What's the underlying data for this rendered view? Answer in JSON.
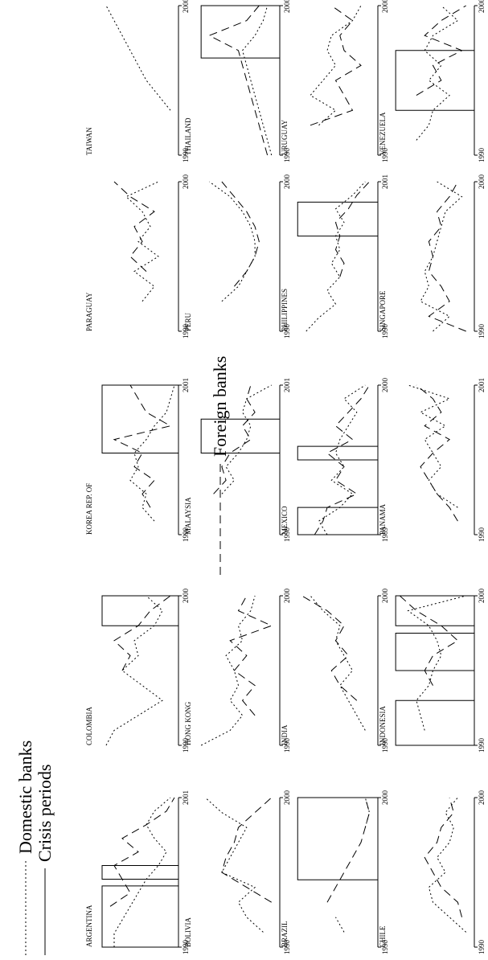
{
  "legend": {
    "domestic": "Domestic banks",
    "crisis": "Crisis periods",
    "foreign": "Foreign banks"
  },
  "chart_data": [
    {
      "type": "line",
      "title": "ARGENTINA",
      "x_start": "1990",
      "x_end": "2001",
      "x": [
        1990,
        1991,
        1992,
        1993,
        1994,
        1995,
        1996,
        1997,
        1998,
        1999,
        2000,
        2001
      ],
      "series": [
        {
          "name": "Domestic banks",
          "values": [
            0.2,
            0.2,
            0.3,
            0.4,
            0.5,
            0.6,
            0.75,
            0.85,
            0.7,
            0.6,
            0.7,
            0.9
          ]
        },
        {
          "name": "Foreign banks",
          "values": [
            null,
            null,
            null,
            0.15,
            0.4,
            0.3,
            0.2,
            0.5,
            0.3,
            0.6,
            0.85,
            0.95
          ]
        }
      ],
      "crisis_periods": [
        [
          1990,
          1994.5
        ],
        [
          1995,
          1996
        ]
      ]
    },
    {
      "type": "line",
      "title": "BOLIVIA",
      "x_start": "1990",
      "x_end": "2000",
      "x": [
        1990,
        1991,
        1992,
        1993,
        1994,
        1995,
        1996,
        1997,
        1998,
        1999,
        2000
      ],
      "series": [
        {
          "name": "Domestic banks",
          "values": [
            null,
            0.8,
            0.6,
            0.5,
            0.7,
            0.3,
            0.4,
            0.5,
            0.6,
            0.3,
            0.1
          ]
        },
        {
          "name": "Foreign banks",
          "values": [
            null,
            null,
            null,
            0.9,
            0.6,
            0.3,
            0.35,
            0.45,
            0.5,
            0.7,
            0.9
          ]
        }
      ],
      "crisis_periods": []
    },
    {
      "type": "line",
      "title": "BRAZIL",
      "x_start": "1990",
      "x_end": "2000",
      "x": [
        1990,
        1991,
        1992,
        1993,
        1994,
        1995,
        1996,
        1997,
        1998,
        1999,
        2000
      ],
      "series": [
        {
          "name": "Domestic banks",
          "values": [
            null,
            0.6,
            0.5,
            null,
            null,
            null,
            null,
            null,
            0.85,
            0.9,
            0.85
          ]
        },
        {
          "name": "Foreign banks",
          "values": [
            null,
            null,
            null,
            0.4,
            0.5,
            0.6,
            0.7,
            0.8,
            0.85,
            0.9,
            0.85
          ]
        }
      ],
      "crisis_periods": [
        [
          1994.5,
          2000
        ]
      ]
    },
    {
      "type": "line",
      "title": "CHILE",
      "x_start": "1990",
      "x_end": "2000",
      "x": [
        1990,
        1991,
        1992,
        1993,
        1994,
        1995,
        1996,
        1997,
        1998,
        1999,
        2000
      ],
      "series": [
        {
          "name": "Domestic banks",
          "values": [
            null,
            0.9,
            0.7,
            0.5,
            0.45,
            0.65,
            0.55,
            0.7,
            0.75,
            0.65,
            0.8
          ]
        },
        {
          "name": "Foreign banks",
          "values": [
            null,
            null,
            0.85,
            0.8,
            0.6,
            0.5,
            0.4,
            0.55,
            0.6,
            0.75,
            0.7
          ]
        }
      ],
      "crisis_periods": []
    },
    {
      "type": "line",
      "title": "COLOMBIA",
      "x_start": "1990",
      "x_end": "2000",
      "x": [
        1990,
        1991,
        1992,
        1993,
        1994,
        1995,
        1996,
        1997,
        1998,
        1999,
        2000
      ],
      "series": [
        {
          "name": "Domestic banks",
          "values": [
            0.1,
            0.2,
            0.5,
            0.8,
            0.55,
            0.3,
            0.5,
            0.45,
            0.7,
            0.8,
            0.6
          ]
        },
        {
          "name": "Foreign banks",
          "values": [
            null,
            null,
            null,
            null,
            null,
            0.3,
            0.4,
            0.2,
            0.5,
            0.65,
            0.9
          ]
        }
      ],
      "crisis_periods": [
        [
          1998,
          2000
        ]
      ]
    },
    {
      "type": "line",
      "title": "HONG KONG",
      "x_start": "1990",
      "x_end": "2000",
      "x": [
        1990,
        1991,
        1992,
        1993,
        1994,
        1995,
        1996,
        1997,
        1998,
        1999,
        2000
      ],
      "series": [
        {
          "name": "Domestic banks",
          "values": [
            0.05,
            0.4,
            0.55,
            0.4,
            0.5,
            0.45,
            0.35,
            0.55,
            0.5,
            0.65,
            0.7
          ]
        },
        {
          "name": "Foreign banks",
          "values": [
            null,
            null,
            0.7,
            0.55,
            0.7,
            0.45,
            0.6,
            0.4,
            0.9,
            0.5,
            0.6
          ]
        }
      ],
      "crisis_periods": []
    },
    {
      "type": "line",
      "title": "INDIA",
      "x_start": "1990",
      "x_end": "2000",
      "x": [
        1990,
        1991,
        1992,
        1993,
        1994,
        1995,
        1996,
        1997,
        1998,
        1999,
        2000
      ],
      "series": [
        {
          "name": "Domestic banks",
          "values": [
            null,
            0.85,
            0.75,
            0.65,
            0.55,
            0.7,
            0.6,
            0.5,
            0.55,
            0.35,
            0.2
          ]
        },
        {
          "name": "Foreign banks",
          "values": [
            null,
            null,
            null,
            0.75,
            0.55,
            0.45,
            0.65,
            0.5,
            0.6,
            0.4,
            0.1
          ]
        }
      ],
      "crisis_periods": []
    },
    {
      "type": "line",
      "title": "INDONESIA",
      "x_start": "1990",
      "x_end": "2000",
      "x": [
        1990,
        1991,
        1992,
        1993,
        1994,
        1995,
        1996,
        1997,
        1998,
        1999,
        2000
      ],
      "series": [
        {
          "name": "Domestic banks",
          "values": [
            null,
            0.4,
            0.35,
            0.3,
            0.45,
            0.5,
            0.6,
            0.55,
            0.45,
            0.2,
            0.9
          ]
        },
        {
          "name": "Foreign banks",
          "values": [
            null,
            null,
            null,
            null,
            0.5,
            0.4,
            0.5,
            0.8,
            0.6,
            0.3,
            0.1
          ]
        }
      ],
      "crisis_periods": [
        [
          1990,
          1993
        ],
        [
          1995,
          1997.5
        ],
        [
          1998,
          2000
        ]
      ]
    },
    {
      "type": "line",
      "title": "KOREA REP. OF",
      "x_start": "1990",
      "x_end": "2001",
      "x": [
        1990,
        1991,
        1992,
        1993,
        1994,
        1995,
        1996,
        1997,
        1998,
        1999,
        2000,
        2001
      ],
      "series": [
        {
          "name": "Domestic banks",
          "values": [
            null,
            0.7,
            0.55,
            0.6,
            0.4,
            0.5,
            0.45,
            0.6,
            0.7,
            0.85,
            0.9,
            0.95
          ]
        },
        {
          "name": "Foreign banks",
          "values": [
            null,
            null,
            0.65,
            0.55,
            0.7,
            0.45,
            0.55,
            0.2,
            0.9,
            0.6,
            0.5,
            0.4
          ]
        }
      ],
      "crisis_periods": [
        [
          1996,
          2001
        ]
      ]
    },
    {
      "type": "line",
      "title": "MALAYSIA",
      "x_start": "1990",
      "x_end": "2001",
      "x": [
        1990,
        1991,
        1992,
        1993,
        1994,
        1995,
        1996,
        1997,
        1998,
        1999,
        2000,
        2001
      ],
      "series": [
        {
          "name": "Domestic banks",
          "values": [
            null,
            null,
            null,
            0.3,
            0.45,
            0.35,
            0.5,
            0.6,
            0.65,
            0.55,
            0.6,
            0.9
          ]
        },
        {
          "name": "Foreign banks",
          "values": [
            null,
            null,
            null,
            0.2,
            0.35,
            0.3,
            0.4,
            0.65,
            0.55,
            0.7,
            0.6,
            0.65
          ]
        }
      ],
      "crisis_periods": [
        [
          1996,
          1998.5
        ]
      ]
    },
    {
      "type": "line",
      "title": "MEXICO",
      "x_start": "1989",
      "x_end": "2000",
      "x": [
        1989,
        1990,
        1991,
        1992,
        1993,
        1994,
        1995,
        1996,
        1997,
        1998,
        1999,
        2000
      ],
      "series": [
        {
          "name": "Domestic banks",
          "values": [
            0.4,
            0.3,
            0.55,
            0.7,
            0.45,
            0.6,
            0.5,
            0.55,
            0.65,
            0.75,
            0.6,
            0.85
          ]
        },
        {
          "name": "Foreign banks",
          "values": [
            0.25,
            0.35,
            0.4,
            0.75,
            0.5,
            0.6,
            0.4,
            0.7,
            0.5,
            0.65,
            0.8,
            0.9
          ]
        }
      ],
      "crisis_periods": [
        [
          1989,
          1991
        ],
        [
          1994.5,
          1995.5
        ]
      ]
    },
    {
      "type": "line",
      "title": "PANAMA",
      "x_start": "1990",
      "x_end": "2001",
      "x": [
        1990,
        1991,
        1992,
        1993,
        1994,
        1995,
        1996,
        1997,
        1998,
        1999,
        2000,
        2001
      ],
      "series": [
        {
          "name": "Domestic banks",
          "values": [
            null,
            null,
            0.8,
            0.55,
            0.45,
            0.6,
            0.5,
            0.4,
            0.65,
            0.35,
            0.7,
            0.2
          ]
        },
        {
          "name": "Foreign banks",
          "values": [
            null,
            0.8,
            0.7,
            0.55,
            0.45,
            0.35,
            0.5,
            0.7,
            0.4,
            0.6,
            0.5,
            0.3
          ]
        }
      ],
      "crisis_periods": []
    },
    {
      "type": "line",
      "title": "PARAGUAY",
      "x_start": "1990",
      "x_end": "2000",
      "x": [
        1990,
        1991,
        1992,
        1993,
        1994,
        1995,
        1996,
        1997,
        1998,
        1999,
        2000
      ],
      "series": [
        {
          "name": "Domestic banks",
          "values": [
            null,
            null,
            0.55,
            0.7,
            0.45,
            0.75,
            0.5,
            0.65,
            0.55,
            0.35,
            0.75
          ]
        },
        {
          "name": "Foreign banks",
          "values": [
            null,
            null,
            null,
            null,
            0.6,
            0.4,
            0.55,
            0.45,
            0.7,
            0.4,
            0.2
          ]
        }
      ],
      "crisis_periods": []
    },
    {
      "type": "line",
      "title": "PERU",
      "x_start": "1990",
      "x_end": "2000",
      "x": [
        1990,
        1991,
        1992,
        1993,
        1994,
        1995,
        1996,
        1997,
        1998,
        1999,
        2000
      ],
      "series": [
        {
          "name": "Domestic banks",
          "values": [
            null,
            null,
            0.3,
            0.5,
            0.6,
            0.7,
            0.7,
            0.65,
            0.55,
            0.4,
            0.15
          ]
        },
        {
          "name": "Foreign banks",
          "values": [
            null,
            null,
            null,
            0.45,
            0.6,
            0.7,
            0.75,
            0.7,
            0.6,
            0.45,
            0.3
          ]
        }
      ],
      "crisis_periods": []
    },
    {
      "type": "line",
      "title": "PHILIPPINES",
      "x_start": "1990",
      "x_end": "2001",
      "x": [
        1990,
        1991,
        1992,
        1993,
        1994,
        1995,
        1996,
        1997,
        1998,
        1999,
        2000,
        2001
      ],
      "series": [
        {
          "name": "Domestic banks",
          "values": [
            0.15,
            0.3,
            0.5,
            0.4,
            0.55,
            0.45,
            0.55,
            0.5,
            0.6,
            0.5,
            0.7,
            0.85
          ]
        },
        {
          "name": "Foreign banks",
          "values": [
            null,
            null,
            null,
            null,
            0.55,
            0.6,
            0.5,
            0.55,
            0.5,
            0.65,
            0.75,
            0.9
          ]
        }
      ],
      "crisis_periods": [
        [
          1997,
          1999.5
        ]
      ]
    },
    {
      "type": "line",
      "title": "SINGAPORE",
      "x_start": "1990",
      "x_end": "2000",
      "x": [
        1990,
        1991,
        1992,
        1993,
        1994,
        1995,
        1996,
        1997,
        1998,
        1999,
        2000
      ],
      "series": [
        {
          "name": "Domestic banks",
          "values": [
            0.5,
            0.7,
            0.35,
            0.45,
            0.4,
            0.5,
            0.55,
            0.6,
            0.65,
            0.85,
            0.55
          ]
        },
        {
          "name": "Foreign banks",
          "values": [
            0.9,
            0.45,
            0.7,
            0.6,
            0.45,
            0.5,
            0.45,
            0.6,
            0.55,
            0.7,
            0.8
          ]
        }
      ],
      "crisis_periods": []
    },
    {
      "type": "line",
      "title": "TAIWAN",
      "x_start": "1990",
      "x_end": "2000",
      "x": [
        1990,
        1991,
        1992,
        1993,
        1994,
        1995,
        1996,
        1997,
        1998,
        1999,
        2000
      ],
      "series": [
        {
          "name": "Domestic banks",
          "values": [
            null,
            null,
            null,
            0.9,
            0.75,
            0.6,
            0.5,
            0.4,
            0.3,
            0.2,
            0.1
          ]
        }
      ],
      "crisis_periods": []
    },
    {
      "type": "line",
      "title": "THAILAND",
      "x_start": "1990",
      "x_end": "2000",
      "x": [
        1990,
        1991,
        1992,
        1993,
        1994,
        1995,
        1996,
        1997,
        1998,
        1999,
        2000
      ],
      "series": [
        {
          "name": "Domestic banks",
          "values": [
            0.9,
            0.85,
            0.8,
            0.75,
            0.7,
            0.65,
            0.6,
            0.55,
            0.7,
            0.8,
            0.85
          ]
        },
        {
          "name": "Foreign banks",
          "values": [
            0.85,
            0.8,
            0.75,
            0.7,
            0.65,
            0.6,
            0.55,
            0.5,
            0.15,
            0.6,
            0.75
          ]
        }
      ],
      "crisis_periods": [
        [
          1996.5,
          2000
        ]
      ]
    },
    {
      "type": "line",
      "title": "URUGUAY",
      "x_start": "1990",
      "x_end": "2000",
      "x": [
        1990,
        1991,
        1992,
        1993,
        1994,
        1995,
        1996,
        1997,
        1998,
        1999,
        2000
      ],
      "series": [
        {
          "name": "Domestic banks",
          "values": [
            null,
            null,
            0.3,
            0.5,
            0.2,
            0.35,
            0.5,
            0.4,
            0.45,
            0.7,
            0.8
          ]
        },
        {
          "name": "Foreign banks",
          "values": [
            null,
            null,
            0.2,
            0.7,
            0.6,
            0.5,
            0.8,
            0.6,
            0.55,
            0.7,
            0.45
          ]
        }
      ],
      "crisis_periods": []
    },
    {
      "type": "line",
      "title": "VENEZUELA",
      "x_start": "1990",
      "x_end": "2000",
      "x": [
        1990,
        1991,
        1992,
        1993,
        1994,
        1995,
        1996,
        1997,
        1998,
        1999,
        2000
      ],
      "series": [
        {
          "name": "Domestic banks",
          "values": [
            null,
            0.3,
            0.45,
            0.5,
            0.7,
            0.45,
            0.6,
            0.4,
            0.5,
            0.8,
            0.6
          ]
        },
        {
          "name": "Foreign banks",
          "values": [
            null,
            null,
            null,
            null,
            0.3,
            0.6,
            0.5,
            0.85,
            0.4,
            0.6,
            0.9
          ]
        }
      ],
      "crisis_periods": [
        [
          1993,
          1997
        ]
      ]
    }
  ]
}
